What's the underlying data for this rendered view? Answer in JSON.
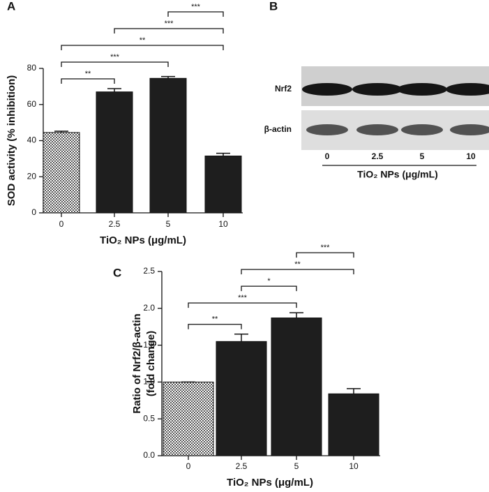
{
  "chart_data": [
    {
      "type": "bar",
      "panel_label": "A",
      "ylabel": [
        "SOD activity (% inhibition)"
      ],
      "xlabel": "TiO₂ NPs (μg/mL)",
      "categories": [
        "0",
        "2.5",
        "5",
        "10"
      ],
      "values": [
        44.5,
        67,
        74.5,
        31.5
      ],
      "errors": [
        0.7,
        1.8,
        1,
        1.5
      ],
      "color": "#1e1e1e",
      "bar_styles": [
        "checkered",
        "solid",
        "solid",
        "solid"
      ],
      "ylim": [
        0,
        80
      ],
      "yticks": [
        0,
        20,
        40,
        60,
        80
      ],
      "significance": [
        {
          "from": "0",
          "to": "2.5",
          "label": "**"
        },
        {
          "from": "0",
          "to": "5",
          "label": "***"
        },
        {
          "from": "0",
          "to": "10",
          "label": "**"
        },
        {
          "from": "2.5",
          "to": "10",
          "label": "***"
        },
        {
          "from": "5",
          "to": "10",
          "label": "***"
        }
      ]
    },
    {
      "type": "bar",
      "panel_label": "C",
      "ylabel": [
        "Ratio of Nrf2/β-actin",
        "(fold change)"
      ],
      "xlabel": "TiO₂ NPs (μg/mL)",
      "categories": [
        "0",
        "2.5",
        "5",
        "10"
      ],
      "values": [
        1.0,
        1.55,
        1.87,
        0.84
      ],
      "errors": [
        0,
        0.1,
        0.07,
        0.07
      ],
      "color": "#1e1e1e",
      "bar_styles": [
        "checkered",
        "solid",
        "solid",
        "solid"
      ],
      "ylim": [
        0,
        2.5
      ],
      "yticks": [
        {
          "value": 0,
          "label": "0.0"
        },
        0.5,
        {
          "value": 1,
          "label": "1.0"
        },
        1.5,
        {
          "value": 2,
          "label": "2.0"
        },
        2.5
      ],
      "significance": [
        {
          "from": "0",
          "to": "2.5",
          "label": "**"
        },
        {
          "from": "0",
          "to": "5",
          "label": "***"
        },
        {
          "from": "2.5",
          "to": "5",
          "label": "*"
        },
        {
          "from": "2.5",
          "to": "10",
          "label": "**"
        },
        {
          "from": "5",
          "to": "10",
          "label": "***"
        }
      ]
    }
  ],
  "blot": {
    "panel_label": "B",
    "rows": [
      "Nrf2",
      "β-actin"
    ],
    "lanes": [
      "0",
      "2.5",
      "5",
      "10"
    ],
    "xlabel": "TiO₂ NPs (μg/mL)"
  }
}
